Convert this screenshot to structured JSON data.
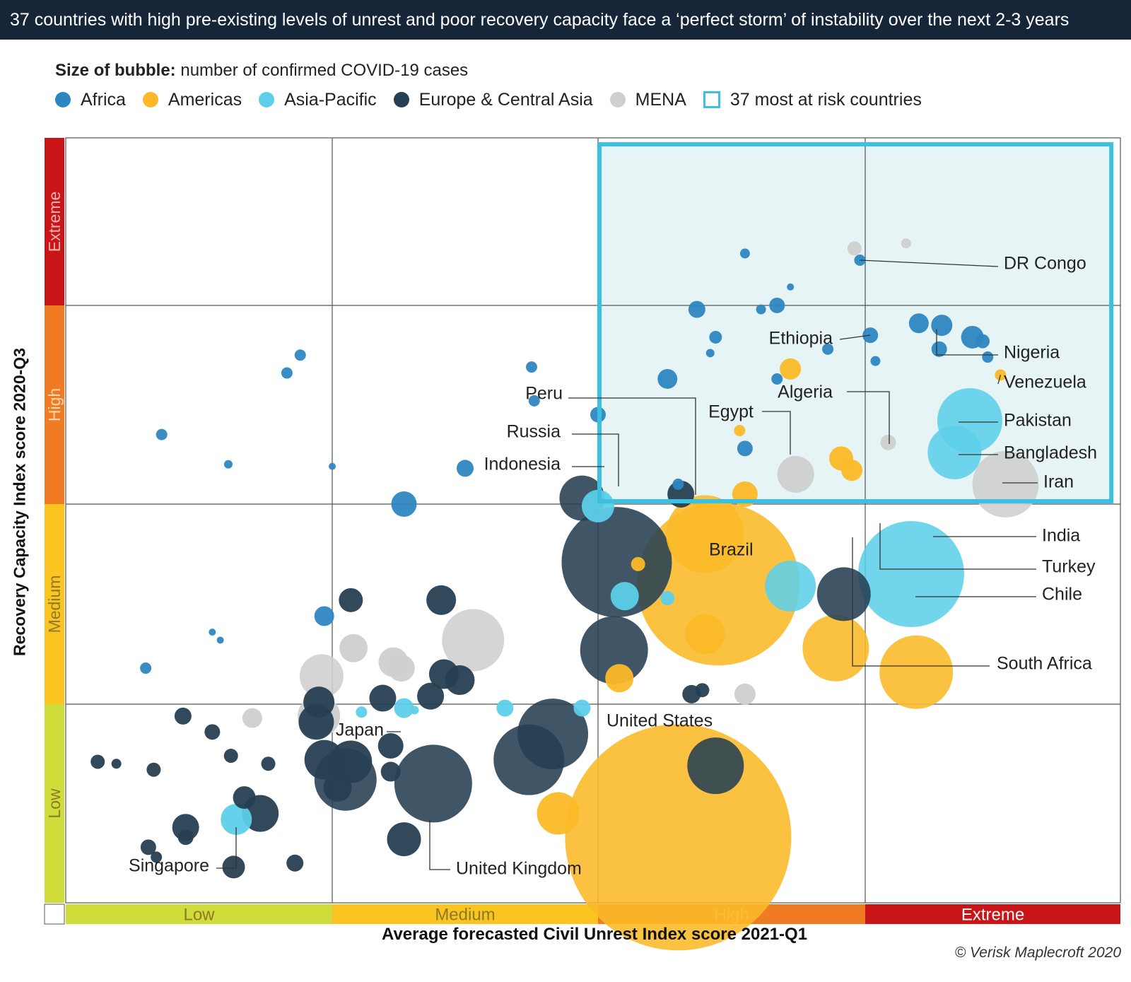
{
  "title": "37 countries with high pre-existing levels of unrest and poor recovery capacity face a ‘perfect storm’ of instability over the next 2-3 years",
  "size_note_bold": "Size of bubble:",
  "size_note_text": " number of confirmed COVID-19 cases",
  "legend": [
    {
      "label": "Africa",
      "color": "#2e86c1"
    },
    {
      "label": "Americas",
      "color": "#fbb927"
    },
    {
      "label": "Asia-Pacific",
      "color": "#5dcfe9"
    },
    {
      "label": "Europe & Central Asia",
      "color": "#263f52"
    },
    {
      "label": "MENA",
      "color": "#cfcfcf"
    },
    {
      "label": "37 most at risk countries",
      "color": "#3cc0e0",
      "shape": "square"
    }
  ],
  "credit": "© Verisk Maplecroft 2020",
  "chart_data": {
    "type": "scatter",
    "subtype": "bubble",
    "xlabel": "Average forecasted Civil Unrest Index score 2021-Q1",
    "ylabel": "Recovery Capacity Index score 2020-Q3",
    "xlim": [
      0,
      4
    ],
    "ylim": [
      0,
      4
    ],
    "x_bands": [
      {
        "label": "Low",
        "color": "#cfdc3a"
      },
      {
        "label": "Medium",
        "color": "#fbc421"
      },
      {
        "label": "High",
        "color": "#f07b22"
      },
      {
        "label": "Extreme",
        "color": "#c91518"
      }
    ],
    "y_bands": [
      {
        "label": "Low",
        "color": "#cfdc3a"
      },
      {
        "label": "Medium",
        "color": "#fbc421"
      },
      {
        "label": "High",
        "color": "#f07b22"
      },
      {
        "label": "Extreme",
        "color": "#c91518"
      }
    ],
    "grid": true,
    "highlight_region": {
      "label": "37 most at risk countries",
      "x": [
        2.0,
        3.97
      ],
      "y": [
        2.0,
        3.97
      ]
    },
    "region_colors": {
      "Africa": "#2e86c1",
      "Americas": "#fbb927",
      "Asia-Pacific": "#5dcfe9",
      "Europe & Central Asia": "#263f52",
      "MENA": "#cfcfcf"
    },
    "points": [
      {
        "name": "United States",
        "x": 2.3,
        "y": 0.33,
        "size": 160,
        "region": "Americas"
      },
      {
        "name": "Brazil",
        "x": 2.45,
        "y": 1.6,
        "size": 115,
        "region": "Americas"
      },
      {
        "name": "India",
        "x": 3.18,
        "y": 1.65,
        "size": 75,
        "region": "Asia-Pacific"
      },
      {
        "name": "Russia",
        "x": 2.07,
        "y": 1.71,
        "size": 78,
        "region": "Europe & Central Asia"
      },
      {
        "name": "Peru",
        "x": 2.4,
        "y": 1.85,
        "size": 55,
        "region": "Americas"
      },
      {
        "name": "Chile",
        "x": 3.2,
        "y": 1.16,
        "size": 52,
        "region": "Americas"
      },
      {
        "name": "Iran",
        "x": 3.55,
        "y": 2.1,
        "size": 47,
        "region": "MENA"
      },
      {
        "name": "United Kingdom",
        "x": 1.38,
        "y": 0.6,
        "size": 55,
        "region": "Europe & Central Asia"
      },
      {
        "name": "Pakistan",
        "x": 3.41,
        "y": 2.42,
        "size": 46,
        "region": "Asia-Pacific"
      },
      {
        "name": "Bangladesh",
        "x": 3.35,
        "y": 2.26,
        "size": 38,
        "region": "Asia-Pacific"
      },
      {
        "name": "South Africa",
        "x": 2.89,
        "y": 1.28,
        "size": 47,
        "region": "Americas"
      },
      {
        "name": "Turkey",
        "x": 2.92,
        "y": 1.55,
        "size": 38,
        "region": "Europe & Central Asia"
      },
      {
        "name": "Egypt",
        "x": 2.74,
        "y": 2.15,
        "size": 26,
        "region": "MENA"
      },
      {
        "name": "Algeria",
        "x": 3.09,
        "y": 2.31,
        "size": 11,
        "region": "MENA"
      },
      {
        "name": "Nigeria",
        "x": 3.3,
        "y": 2.9,
        "size": 15,
        "region": "Africa"
      },
      {
        "name": "Venezuela",
        "x": 3.53,
        "y": 2.65,
        "size": 8,
        "region": "Americas"
      },
      {
        "name": "Ethiopia",
        "x": 3.02,
        "y": 2.85,
        "size": 11,
        "region": "Africa"
      },
      {
        "name": "DR Congo",
        "x": 2.98,
        "y": 3.27,
        "size": 8,
        "region": "Africa"
      },
      {
        "name": "Indonesia",
        "x": 2.0,
        "y": 1.99,
        "size": 23,
        "region": "Asia-Pacific"
      },
      {
        "name": "Japan",
        "x": 1.27,
        "y": 0.98,
        "size": 14,
        "region": "Asia-Pacific"
      },
      {
        "name": "Singapore",
        "x": 0.64,
        "y": 0.42,
        "size": 22,
        "region": "Asia-Pacific"
      },
      {
        "name": "",
        "x": 2.06,
        "y": 1.27,
        "size": 48,
        "region": "Europe & Central Asia"
      },
      {
        "name": "",
        "x": 2.44,
        "y": 0.69,
        "size": 40,
        "region": "Europe & Central Asia"
      },
      {
        "name": "",
        "x": 1.53,
        "y": 1.32,
        "size": 44,
        "region": "MENA"
      },
      {
        "name": "",
        "x": 1.74,
        "y": 0.72,
        "size": 50,
        "region": "Europe & Central Asia"
      },
      {
        "name": "",
        "x": 1.83,
        "y": 0.85,
        "size": 50,
        "region": "Europe & Central Asia"
      },
      {
        "name": "",
        "x": 1.05,
        "y": 0.62,
        "size": 44,
        "region": "Europe & Central Asia"
      },
      {
        "name": "",
        "x": 0.97,
        "y": 0.72,
        "size": 28,
        "region": "Europe & Central Asia"
      },
      {
        "name": "",
        "x": 1.02,
        "y": 0.58,
        "size": 20,
        "region": "Europe & Central Asia"
      },
      {
        "name": "",
        "x": 0.73,
        "y": 0.45,
        "size": 26,
        "region": "Europe & Central Asia"
      },
      {
        "name": "",
        "x": 0.67,
        "y": 0.53,
        "size": 16,
        "region": "Europe & Central Asia"
      },
      {
        "name": "",
        "x": 0.86,
        "y": 0.2,
        "size": 12,
        "region": "Europe & Central Asia"
      },
      {
        "name": "",
        "x": 1.22,
        "y": 0.66,
        "size": 14,
        "region": "Europe & Central Asia"
      },
      {
        "name": "",
        "x": 1.07,
        "y": 0.71,
        "size": 30,
        "region": "Europe & Central Asia"
      },
      {
        "name": "",
        "x": 0.96,
        "y": 1.14,
        "size": 31,
        "region": "MENA"
      },
      {
        "name": "",
        "x": 1.19,
        "y": 1.03,
        "size": 19,
        "region": "Europe & Central Asia"
      },
      {
        "name": "",
        "x": 1.08,
        "y": 1.28,
        "size": 20,
        "region": "MENA"
      },
      {
        "name": "",
        "x": 0.95,
        "y": 1.01,
        "size": 22,
        "region": "Europe & Central Asia"
      },
      {
        "name": "",
        "x": 0.94,
        "y": 0.91,
        "size": 25,
        "region": "Europe & Central Asia"
      },
      {
        "name": "",
        "x": 0.95,
        "y": 0.94,
        "size": 30,
        "region": "MENA"
      },
      {
        "name": "",
        "x": 1.07,
        "y": 1.52,
        "size": 17,
        "region": "Europe & Central Asia"
      },
      {
        "name": "",
        "x": 1.23,
        "y": 1.21,
        "size": 21,
        "region": "MENA"
      },
      {
        "name": "",
        "x": 1.26,
        "y": 1.18,
        "size": 19,
        "region": "MENA"
      },
      {
        "name": "",
        "x": 1.41,
        "y": 1.52,
        "size": 21,
        "region": "Europe & Central Asia"
      },
      {
        "name": "",
        "x": 1.37,
        "y": 1.04,
        "size": 19,
        "region": "Europe & Central Asia"
      },
      {
        "name": "",
        "x": 1.48,
        "y": 1.12,
        "size": 21,
        "region": "Europe & Central Asia"
      },
      {
        "name": "",
        "x": 1.42,
        "y": 1.15,
        "size": 21,
        "region": "Europe & Central Asia"
      },
      {
        "name": "",
        "x": 1.27,
        "y": 0.32,
        "size": 24,
        "region": "Europe & Central Asia"
      },
      {
        "name": "",
        "x": 1.22,
        "y": 0.79,
        "size": 18,
        "region": "Europe & Central Asia"
      },
      {
        "name": "",
        "x": 0.7,
        "y": 0.93,
        "size": 14,
        "region": "MENA"
      },
      {
        "name": "",
        "x": 0.97,
        "y": 1.44,
        "size": 14,
        "region": "Africa"
      },
      {
        "name": "",
        "x": 0.55,
        "y": 0.86,
        "size": 11,
        "region": "Europe & Central Asia"
      },
      {
        "name": "",
        "x": 0.44,
        "y": 0.94,
        "size": 12,
        "region": "Europe & Central Asia"
      },
      {
        "name": "",
        "x": 0.76,
        "y": 0.7,
        "size": 10,
        "region": "Europe & Central Asia"
      },
      {
        "name": "",
        "x": 0.12,
        "y": 0.71,
        "size": 10,
        "region": "Europe & Central Asia"
      },
      {
        "name": "",
        "x": 0.33,
        "y": 0.67,
        "size": 10,
        "region": "Europe & Central Asia"
      },
      {
        "name": "",
        "x": 0.62,
        "y": 0.74,
        "size": 10,
        "region": "Europe & Central Asia"
      },
      {
        "name": "",
        "x": 0.45,
        "y": 0.33,
        "size": 11,
        "region": "Europe & Central Asia"
      },
      {
        "name": "",
        "x": 0.45,
        "y": 0.38,
        "size": 19,
        "region": "Europe & Central Asia"
      },
      {
        "name": "",
        "x": 0.63,
        "y": 0.18,
        "size": 16,
        "region": "Europe & Central Asia"
      },
      {
        "name": "",
        "x": 0.31,
        "y": 0.28,
        "size": 11,
        "region": "Europe & Central Asia"
      },
      {
        "name": "",
        "x": 1.65,
        "y": 0.98,
        "size": 12,
        "region": "Asia-Pacific"
      },
      {
        "name": "",
        "x": 1.94,
        "y": 0.98,
        "size": 12,
        "region": "Asia-Pacific"
      },
      {
        "name": "",
        "x": 1.85,
        "y": 0.45,
        "size": 30,
        "region": "Americas"
      },
      {
        "name": "",
        "x": 2.4,
        "y": 1.35,
        "size": 28,
        "region": "Americas"
      },
      {
        "name": "",
        "x": 2.72,
        "y": 1.59,
        "size": 36,
        "region": "Asia-Pacific"
      },
      {
        "name": "",
        "x": 2.55,
        "y": 2.05,
        "size": 18,
        "region": "Americas"
      },
      {
        "name": "",
        "x": 2.31,
        "y": 2.05,
        "size": 19,
        "region": "Europe & Central Asia"
      },
      {
        "name": "",
        "x": 2.1,
        "y": 1.54,
        "size": 20,
        "region": "Asia-Pacific"
      },
      {
        "name": "",
        "x": 2.08,
        "y": 1.13,
        "size": 20,
        "region": "Americas"
      },
      {
        "name": "",
        "x": 2.55,
        "y": 1.05,
        "size": 15,
        "region": "MENA"
      },
      {
        "name": "",
        "x": 2.35,
        "y": 1.05,
        "size": 13,
        "region": "Europe & Central Asia"
      },
      {
        "name": "",
        "x": 2.39,
        "y": 1.07,
        "size": 10,
        "region": "Europe & Central Asia"
      },
      {
        "name": "",
        "x": 1.94,
        "y": 2.03,
        "size": 32,
        "region": "Europe & Central Asia"
      },
      {
        "name": "",
        "x": 3.21,
        "y": 2.91,
        "size": 14,
        "region": "Africa"
      },
      {
        "name": "",
        "x": 3.42,
        "y": 2.84,
        "size": 16,
        "region": "Africa"
      },
      {
        "name": "",
        "x": 3.46,
        "y": 2.82,
        "size": 10,
        "region": "Africa"
      },
      {
        "name": "",
        "x": 2.3,
        "y": 2.1,
        "size": 8,
        "region": "Africa"
      },
      {
        "name": "",
        "x": 2.26,
        "y": 2.63,
        "size": 14,
        "region": "Africa"
      },
      {
        "name": "",
        "x": 3.29,
        "y": 2.78,
        "size": 11,
        "region": "Africa"
      },
      {
        "name": "",
        "x": 3.48,
        "y": 2.74,
        "size": 8,
        "region": "Africa"
      },
      {
        "name": "",
        "x": 2.55,
        "y": 2.28,
        "size": 11,
        "region": "Africa"
      },
      {
        "name": "",
        "x": 2.0,
        "y": 2.45,
        "size": 11,
        "region": "Africa"
      },
      {
        "name": "",
        "x": 1.5,
        "y": 2.18,
        "size": 12,
        "region": "Africa"
      },
      {
        "name": "",
        "x": 1.27,
        "y": 2.0,
        "size": 18,
        "region": "Africa"
      },
      {
        "name": "",
        "x": 0.88,
        "y": 2.75,
        "size": 8,
        "region": "Africa"
      },
      {
        "name": "",
        "x": 0.83,
        "y": 2.66,
        "size": 8,
        "region": "Africa"
      },
      {
        "name": "",
        "x": 2.55,
        "y": 3.31,
        "size": 7,
        "region": "Africa"
      },
      {
        "name": "",
        "x": 2.42,
        "y": 2.76,
        "size": 6,
        "region": "Africa"
      },
      {
        "name": "",
        "x": 2.44,
        "y": 2.84,
        "size": 9,
        "region": "Africa"
      },
      {
        "name": "",
        "x": 2.37,
        "y": 2.98,
        "size": 12,
        "region": "Africa"
      },
      {
        "name": "",
        "x": 2.67,
        "y": 3.0,
        "size": 11,
        "region": "Africa"
      },
      {
        "name": "",
        "x": 2.61,
        "y": 2.98,
        "size": 7,
        "region": "Africa"
      },
      {
        "name": "",
        "x": 2.72,
        "y": 3.11,
        "size": 5,
        "region": "Africa"
      },
      {
        "name": "",
        "x": 2.96,
        "y": 3.34,
        "size": 10,
        "region": "MENA"
      },
      {
        "name": "",
        "x": 3.16,
        "y": 3.37,
        "size": 7,
        "region": "MENA"
      },
      {
        "name": "",
        "x": 2.72,
        "y": 2.68,
        "size": 15,
        "region": "Americas"
      },
      {
        "name": "",
        "x": 2.91,
        "y": 2.23,
        "size": 17,
        "region": "Americas"
      },
      {
        "name": "",
        "x": 2.95,
        "y": 2.17,
        "size": 15,
        "region": "Americas"
      },
      {
        "name": "",
        "x": 2.67,
        "y": 2.63,
        "size": 8,
        "region": "Africa"
      },
      {
        "name": "",
        "x": 2.86,
        "y": 2.78,
        "size": 8,
        "region": "Africa"
      },
      {
        "name": "",
        "x": 1.75,
        "y": 2.69,
        "size": 8,
        "region": "Africa"
      },
      {
        "name": "",
        "x": 2.53,
        "y": 2.37,
        "size": 8,
        "region": "Americas"
      },
      {
        "name": "",
        "x": 3.04,
        "y": 2.72,
        "size": 7,
        "region": "Africa"
      },
      {
        "name": "",
        "x": 1.76,
        "y": 2.52,
        "size": 8,
        "region": "Africa"
      },
      {
        "name": "",
        "x": 0.61,
        "y": 2.2,
        "size": 6,
        "region": "Africa"
      },
      {
        "name": "",
        "x": 0.3,
        "y": 1.18,
        "size": 8,
        "region": "Africa"
      },
      {
        "name": "",
        "x": 0.36,
        "y": 2.35,
        "size": 8,
        "region": "Africa"
      },
      {
        "name": "",
        "x": 0.58,
        "y": 1.32,
        "size": 5,
        "region": "Africa"
      },
      {
        "name": "",
        "x": 1.11,
        "y": 0.96,
        "size": 8,
        "region": "Asia-Pacific"
      },
      {
        "name": "",
        "x": 0.19,
        "y": 0.7,
        "size": 7,
        "region": "Europe & Central Asia"
      },
      {
        "name": "",
        "x": 0.55,
        "y": 1.36,
        "size": 5,
        "region": "Africa"
      },
      {
        "name": "",
        "x": 1.31,
        "y": 0.97,
        "size": 6,
        "region": "Asia-Pacific"
      },
      {
        "name": "",
        "x": 0.34,
        "y": 0.23,
        "size": 8,
        "region": "Europe & Central Asia"
      },
      {
        "name": "",
        "x": 1.0,
        "y": 2.19,
        "size": 5,
        "region": "Africa"
      },
      {
        "name": "",
        "x": 2.26,
        "y": 1.53,
        "size": 10,
        "region": "Asia-Pacific"
      },
      {
        "name": "",
        "x": 2.15,
        "y": 1.7,
        "size": 10,
        "region": "Americas"
      }
    ]
  }
}
